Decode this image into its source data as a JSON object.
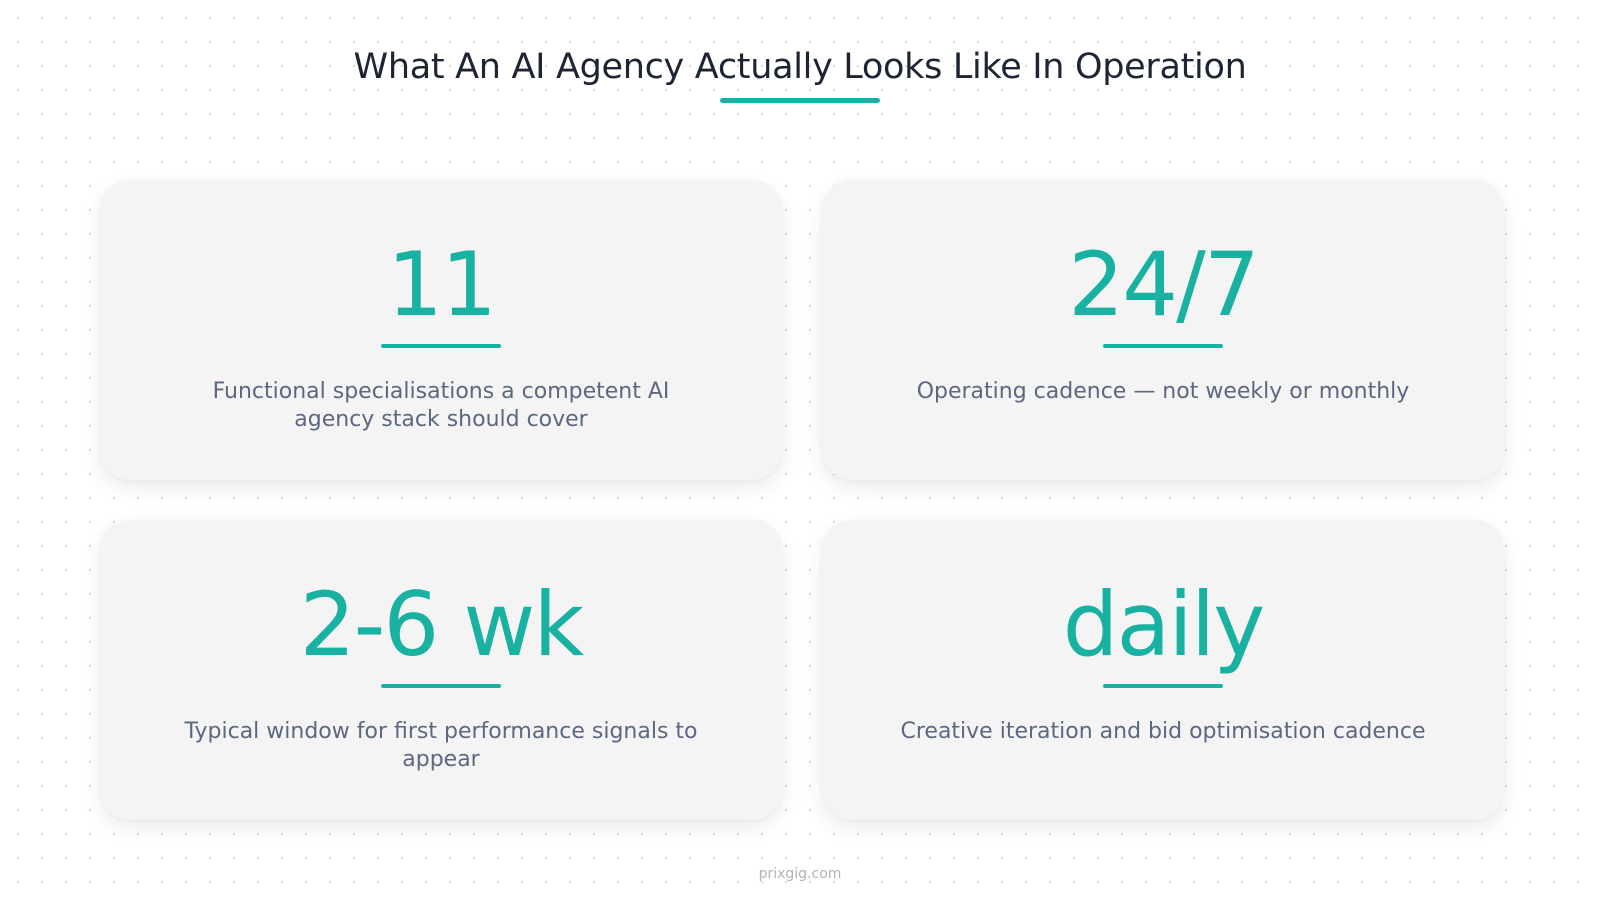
{
  "title": "What An AI Agency Actually Looks Like In Operation",
  "accent_color": "#19b1a2",
  "stats": [
    {
      "value": "11",
      "description": "Functional specialisations a competent AI agency stack should cover"
    },
    {
      "value": "24/7",
      "description": "Operating cadence — not weekly or monthly"
    },
    {
      "value": "2-6 wk",
      "description": "Typical window for first performance signals to appear"
    },
    {
      "value": "daily",
      "description": "Creative iteration and bid optimisation cadence"
    }
  ],
  "footer": "prixgig.com"
}
